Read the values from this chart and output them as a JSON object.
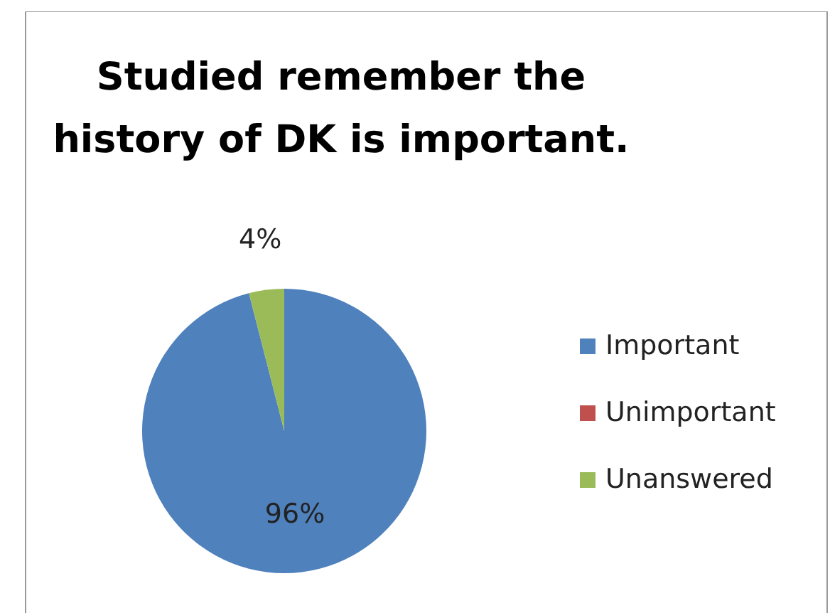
{
  "chart_data": {
    "type": "pie",
    "title": "Studied remember the history of DK is important.",
    "categories": [
      "Important",
      "Unimportant",
      "Unanswered"
    ],
    "values": [
      96,
      0,
      4
    ],
    "colors": [
      "#4f81bd",
      "#c0504d",
      "#9bbb59"
    ],
    "value_labels": [
      "96%",
      null,
      "4%"
    ],
    "legend": "right"
  }
}
